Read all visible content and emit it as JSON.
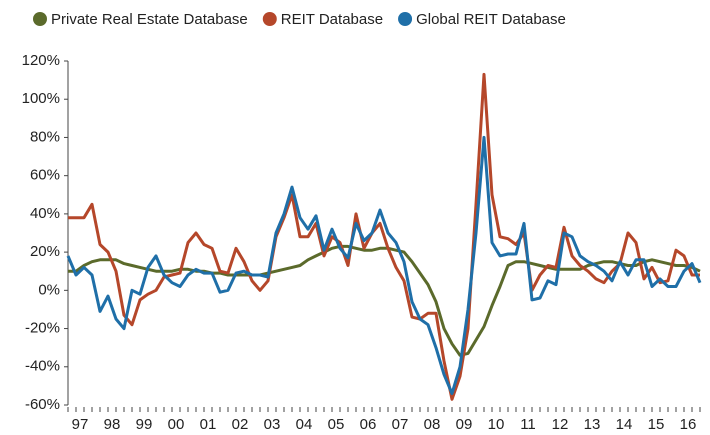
{
  "chart_data": {
    "type": "line",
    "categories": [
      null,
      "97",
      null,
      null,
      null,
      "98",
      null,
      null,
      null,
      "99",
      null,
      null,
      null,
      "00",
      null,
      null,
      null,
      "01",
      null,
      null,
      null,
      "02",
      null,
      null,
      null,
      "03",
      null,
      null,
      null,
      "04",
      null,
      null,
      null,
      "05",
      null,
      null,
      null,
      "06",
      null,
      null,
      null,
      "07",
      null,
      null,
      null,
      "08",
      null,
      null,
      null,
      "09",
      null,
      null,
      null,
      "10",
      null,
      null,
      null,
      "11",
      null,
      null,
      null,
      "12",
      null,
      null,
      null,
      "13",
      null,
      null,
      null,
      "14",
      null,
      null,
      null,
      "15",
      null,
      null,
      null,
      "16",
      null,
      null
    ],
    "series": [
      {
        "name": "Private Real Estate Database",
        "color": "#5b6a2b",
        "values": [
          10,
          10,
          13,
          15,
          16,
          16,
          16,
          14,
          13,
          12,
          11,
          10,
          10,
          10,
          11,
          11,
          10,
          10,
          9,
          9,
          8,
          8,
          8,
          8,
          8,
          9,
          10,
          11,
          12,
          13,
          16,
          18,
          20,
          22,
          23,
          23,
          22,
          21,
          21,
          22,
          22,
          21,
          20,
          15,
          9,
          3,
          -6,
          -20,
          -28,
          -34,
          -33,
          -26,
          -19,
          -8,
          2,
          13,
          15,
          15,
          14,
          13,
          12,
          11,
          11,
          11,
          11,
          13,
          14,
          15,
          15,
          14,
          13,
          13,
          15,
          16,
          15,
          14,
          13,
          13,
          12,
          10
        ]
      },
      {
        "name": "REIT Database",
        "color": "#b5472a",
        "values": [
          38,
          38,
          38,
          45,
          24,
          20,
          10,
          -13,
          -18,
          -5,
          -2,
          0,
          7,
          8,
          9,
          25,
          30,
          24,
          22,
          10,
          9,
          22,
          15,
          5,
          0,
          5,
          28,
          38,
          50,
          28,
          28,
          35,
          18,
          28,
          25,
          13,
          40,
          22,
          30,
          35,
          22,
          12,
          5,
          -14,
          -15,
          -12,
          -12,
          -37,
          -57,
          -45,
          -20,
          45,
          113,
          50,
          28,
          27,
          24,
          30,
          0,
          8,
          13,
          12,
          33,
          18,
          13,
          10,
          6,
          4,
          10,
          14,
          30,
          25,
          6,
          12,
          4,
          5,
          21,
          18,
          8,
          8
        ]
      },
      {
        "name": "Global REIT Database",
        "color": "#1f6fa8",
        "values": [
          18,
          8,
          12,
          8,
          -11,
          -3,
          -15,
          -20,
          0,
          -2,
          12,
          18,
          8,
          4,
          2,
          8,
          11,
          9,
          9,
          -1,
          0,
          9,
          10,
          8,
          8,
          7,
          30,
          40,
          54,
          38,
          32,
          39,
          21,
          32,
          22,
          17,
          35,
          26,
          30,
          42,
          30,
          25,
          15,
          -6,
          -15,
          -18,
          -30,
          -44,
          -54,
          -40,
          -10,
          30,
          80,
          25,
          18,
          19,
          19,
          35,
          -5,
          -4,
          5,
          3,
          30,
          28,
          18,
          15,
          13,
          10,
          5,
          15,
          8,
          16,
          16,
          2,
          6,
          2,
          2,
          10,
          14,
          4
        ]
      }
    ],
    "ylim": [
      -60,
      120
    ],
    "yticks": [
      {
        "value": -60,
        "label": "-60%"
      },
      {
        "value": -40,
        "label": "-40%"
      },
      {
        "value": -20,
        "label": "-20%"
      },
      {
        "value": 0,
        "label": "0%"
      },
      {
        "value": 20,
        "label": "20%"
      },
      {
        "value": 40,
        "label": "40%"
      },
      {
        "value": 60,
        "label": "60%"
      },
      {
        "value": 80,
        "label": "80%"
      },
      {
        "value": 100,
        "label": "100%"
      },
      {
        "value": 120,
        "label": "120%"
      }
    ],
    "grid": false,
    "legend": "top"
  }
}
